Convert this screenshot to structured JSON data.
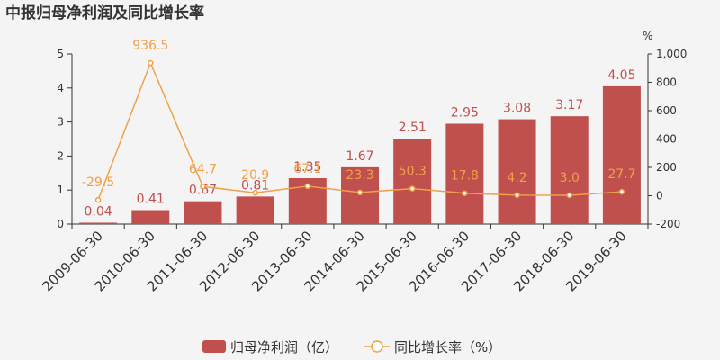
{
  "title": "中报归母净利润及同比增长率",
  "y2_unit": "%",
  "colors": {
    "bar": "#c0504d",
    "line": "#f0a04b",
    "axis": "#333333"
  },
  "chart_data": {
    "type": "bar",
    "categories": [
      "2009-06-30",
      "2010-06-30",
      "2011-06-30",
      "2012-06-30",
      "2013-06-30",
      "2014-06-30",
      "2015-06-30",
      "2016-06-30",
      "2017-06-30",
      "2018-06-30",
      "2019-06-30"
    ],
    "series": [
      {
        "name": "归母净利润（亿）",
        "type": "bar",
        "axis": "left",
        "values": [
          0.04,
          0.41,
          0.67,
          0.81,
          1.35,
          1.67,
          2.51,
          2.95,
          3.08,
          3.17,
          4.05
        ],
        "labels": [
          "0.04",
          "0.41",
          "0.67",
          "0.81",
          "1.35",
          "1.67",
          "2.51",
          "2.95",
          "3.08",
          "3.17",
          "4.05"
        ]
      },
      {
        "name": "同比增长率（%）",
        "type": "line",
        "axis": "right",
        "values": [
          -29.5,
          936.5,
          64.7,
          20.9,
          67.1,
          23.3,
          50.3,
          17.8,
          4.2,
          3.0,
          27.7
        ],
        "labels": [
          "-29.5",
          "936.5",
          "64.7",
          "20.9",
          "67.1",
          "23.3",
          "50.3",
          "17.8",
          "4.2",
          "3.0",
          "27.7"
        ]
      }
    ],
    "ylim": [
      0,
      5
    ],
    "y_ticks": [
      "0",
      "1",
      "2",
      "3",
      "4",
      "5"
    ],
    "y2lim": [
      -200,
      1000
    ],
    "y2_ticks": [
      "-200",
      "0",
      "200",
      "400",
      "600",
      "800",
      "1,000"
    ],
    "legend": "bottom-center",
    "grid": false
  }
}
